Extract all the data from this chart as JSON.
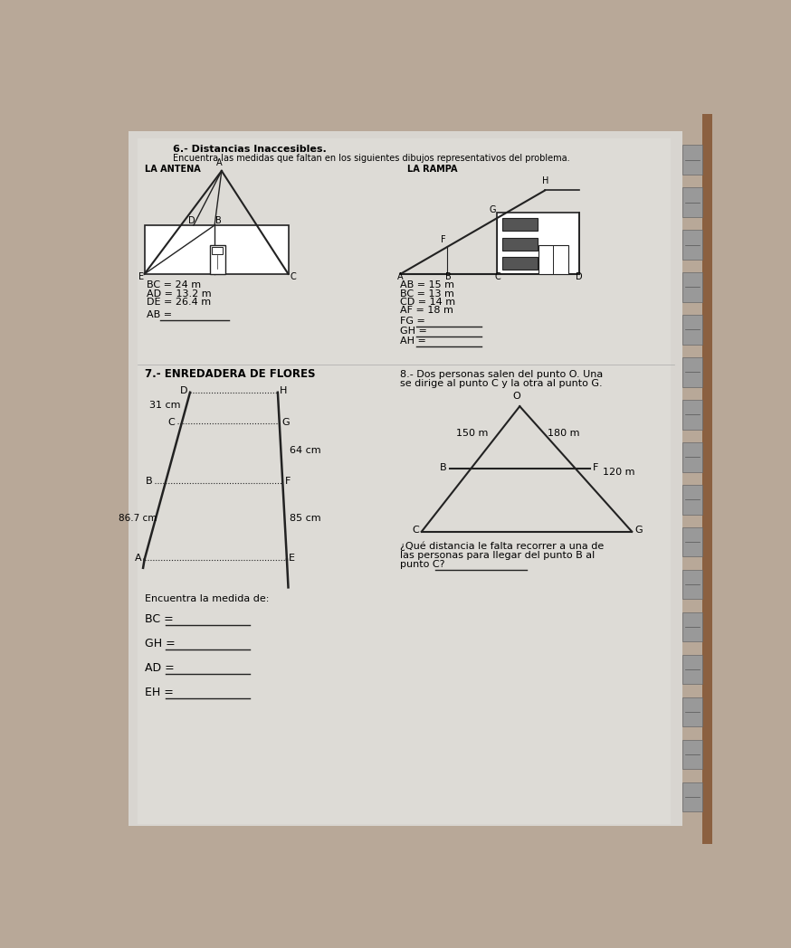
{
  "title_line1": "6.- Distancias Inaccesibles.",
  "title_line2": "Encuentra las medidas que faltan en los siguientes dibujos representativos del problema.",
  "bg_color": "#c8c8c8",
  "paper_color": "#e0e0e0",
  "section1_label": "LA ANTENA",
  "section2_label": "LA RAMPA",
  "antenna_given": [
    "BC = 24 m",
    "AD = 13.2 m",
    "DE = 26.4 m"
  ],
  "rampa_given": [
    "AB = 15 m",
    "BC = 13 m",
    "CD = 14 m",
    "AF = 18 m"
  ],
  "rampa_find": [
    "FG = ",
    "GH = ",
    "AH = "
  ],
  "section7_title": "7.- ENREDADERA DE FLORES",
  "section8_title1": "8.- Dos personas salen del punto O. Una",
  "section8_title2": "se dirige al punto C y la otra al punto G.",
  "section8_q1": "¿Qué distancia le falta recorrer a una de",
  "section8_q2": "las personas para llegar del punto B al",
  "section8_q3": "punto C? ",
  "flores_find_title": "Encuentra la medida de:",
  "flores_find": [
    "BC = ",
    "GH = ",
    "AD = ",
    "EH = "
  ],
  "line_color": "#222222"
}
